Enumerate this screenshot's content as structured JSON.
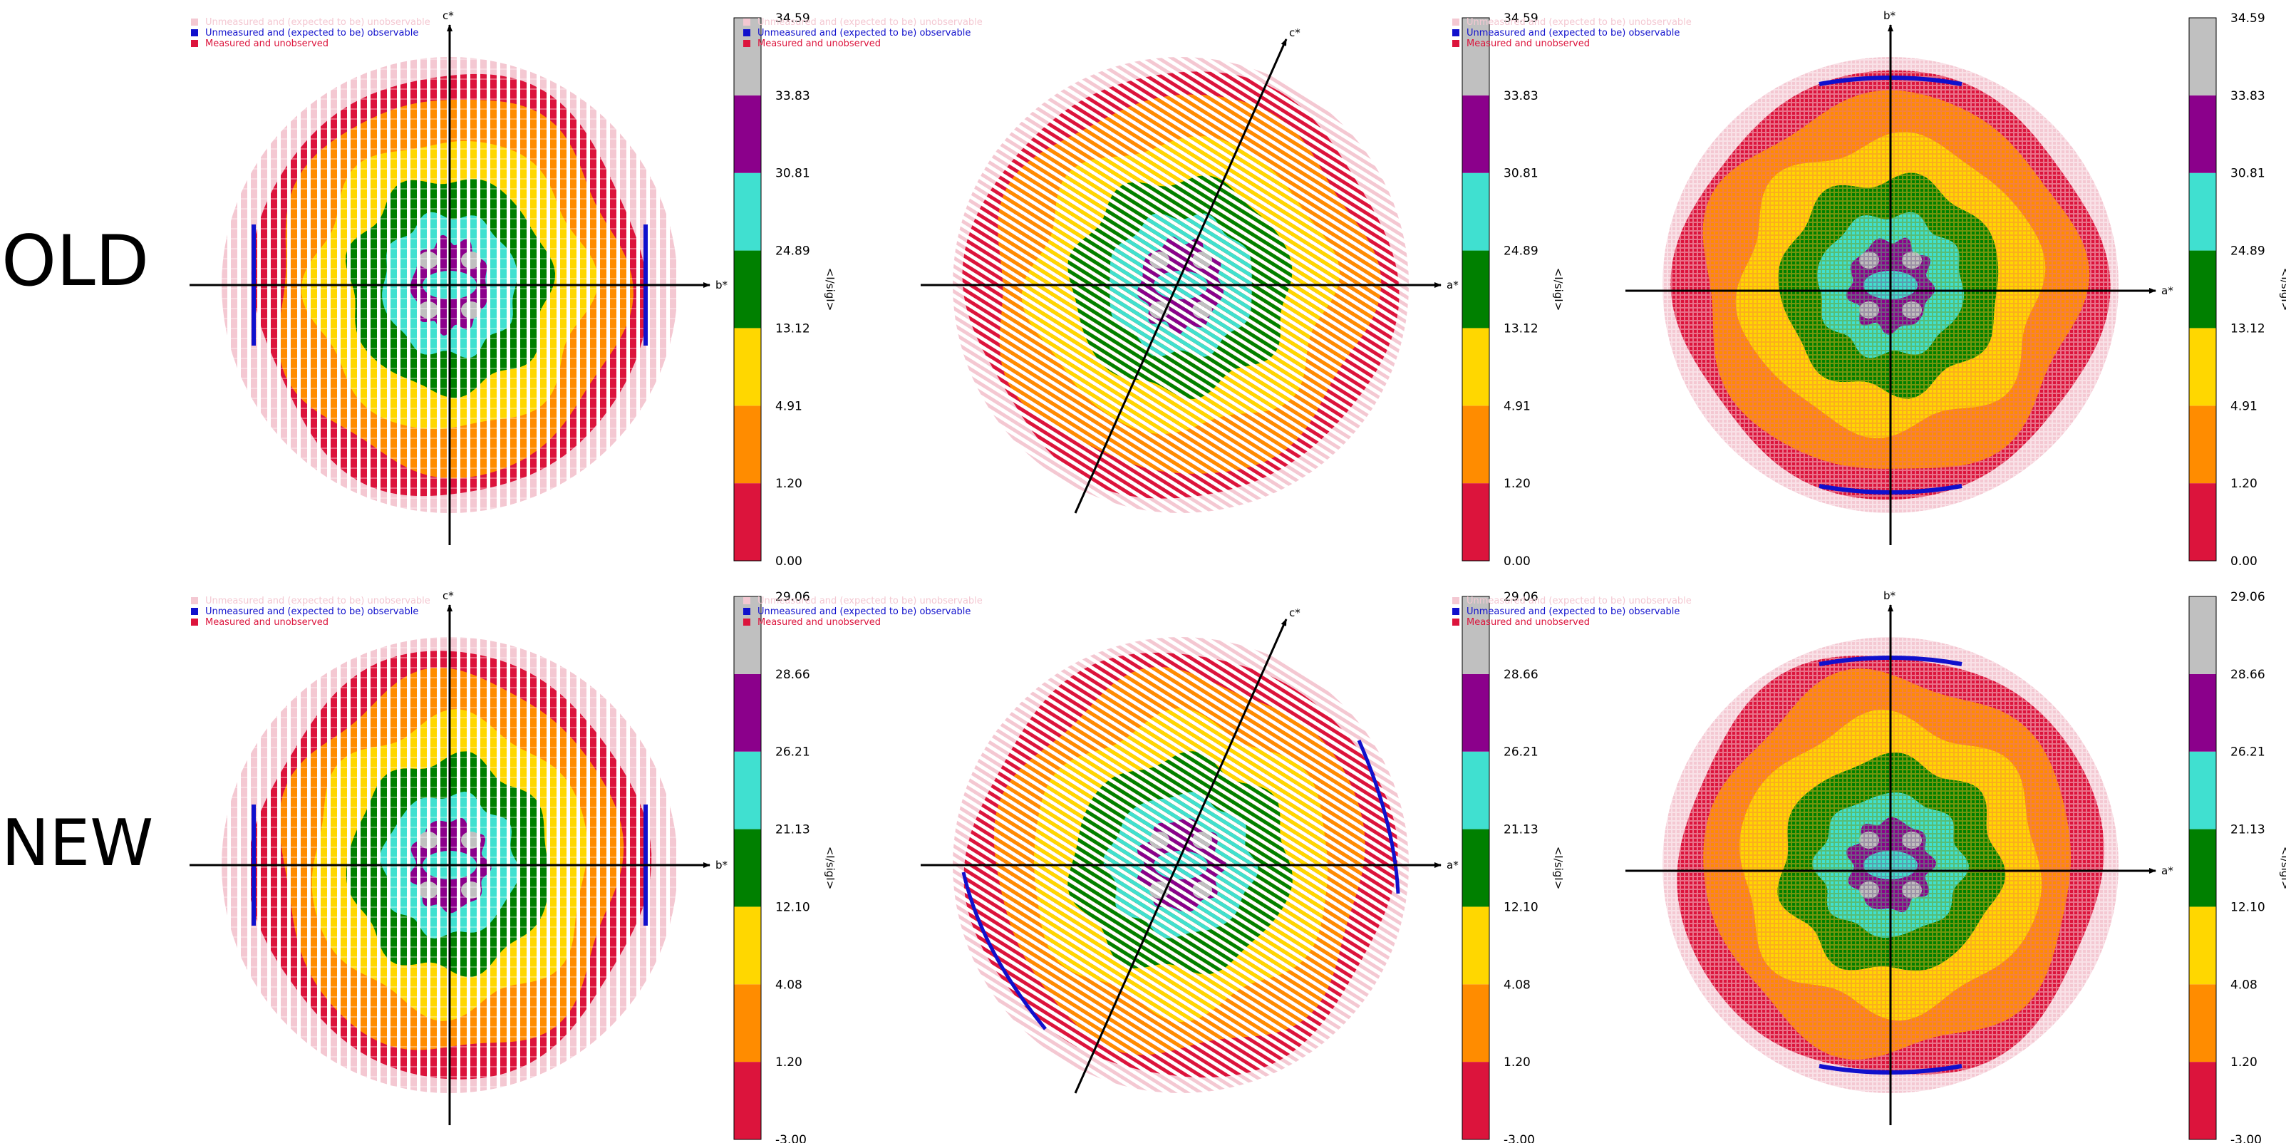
{
  "row_labels": [
    "OLD",
    "NEW"
  ],
  "legend": [
    {
      "text": "Unmeasured and (expected to be) unobservable",
      "color": "#f4c8d2"
    },
    {
      "text": "Unmeasured and (expected to be) observable",
      "color": "#1010cc"
    },
    {
      "text": "Measured and unobserved",
      "color": "#dc143c"
    }
  ],
  "band_colors": [
    "#dc143c",
    "#ff8c00",
    "#ffd700",
    "#008000",
    "#40e0d0",
    "#8b008b",
    "#c0c0c0"
  ],
  "colorbar_title": "<I/sigI>",
  "colorbar_ticks": {
    "OLD": [
      "0.00",
      "1.20",
      "4.91",
      "13.12",
      "24.89",
      "30.81",
      "33.83",
      "34.59"
    ],
    "NEW": [
      "-3.00",
      "1.20",
      "4.08",
      "12.10",
      "21.13",
      "26.21",
      "28.66",
      "29.06"
    ]
  },
  "panels": [
    {
      "row": "OLD",
      "col": 0,
      "h_axis": "b*",
      "v_axis": "c*",
      "oblique": false,
      "pattern": "stripes"
    },
    {
      "row": "OLD",
      "col": 1,
      "h_axis": "a*",
      "v_axis": "c*",
      "oblique": true,
      "pattern": "hatch"
    },
    {
      "row": "OLD",
      "col": 2,
      "h_axis": "a*",
      "v_axis": "b*",
      "oblique": false,
      "pattern": "dots"
    },
    {
      "row": "NEW",
      "col": 0,
      "h_axis": "b*",
      "v_axis": "c*",
      "oblique": false,
      "pattern": "stripes"
    },
    {
      "row": "NEW",
      "col": 1,
      "h_axis": "a*",
      "v_axis": "c*",
      "oblique": true,
      "pattern": "hatch"
    },
    {
      "row": "NEW",
      "col": 2,
      "h_axis": "a*",
      "v_axis": "b*",
      "oblique": false,
      "pattern": "dots"
    }
  ],
  "chart_data": {
    "type": "heatmap",
    "title": "",
    "rows": [
      "OLD",
      "NEW"
    ],
    "panel_axes": [
      [
        "b*",
        "c*"
      ],
      [
        "a*",
        "c*"
      ],
      [
        "a*",
        "b*"
      ]
    ],
    "colorbar_label": "<I/sigI>",
    "colorbar_OLD": [
      0.0,
      1.2,
      4.91,
      13.12,
      24.89,
      30.81,
      33.83,
      34.59
    ],
    "colorbar_NEW": [
      -3.0,
      1.2,
      4.08,
      12.1,
      21.13,
      26.21,
      28.66,
      29.06
    ],
    "legend": [
      "Unmeasured and (expected to be) unobservable",
      "Unmeasured and (expected to be) observable",
      "Measured and unobserved"
    ]
  }
}
